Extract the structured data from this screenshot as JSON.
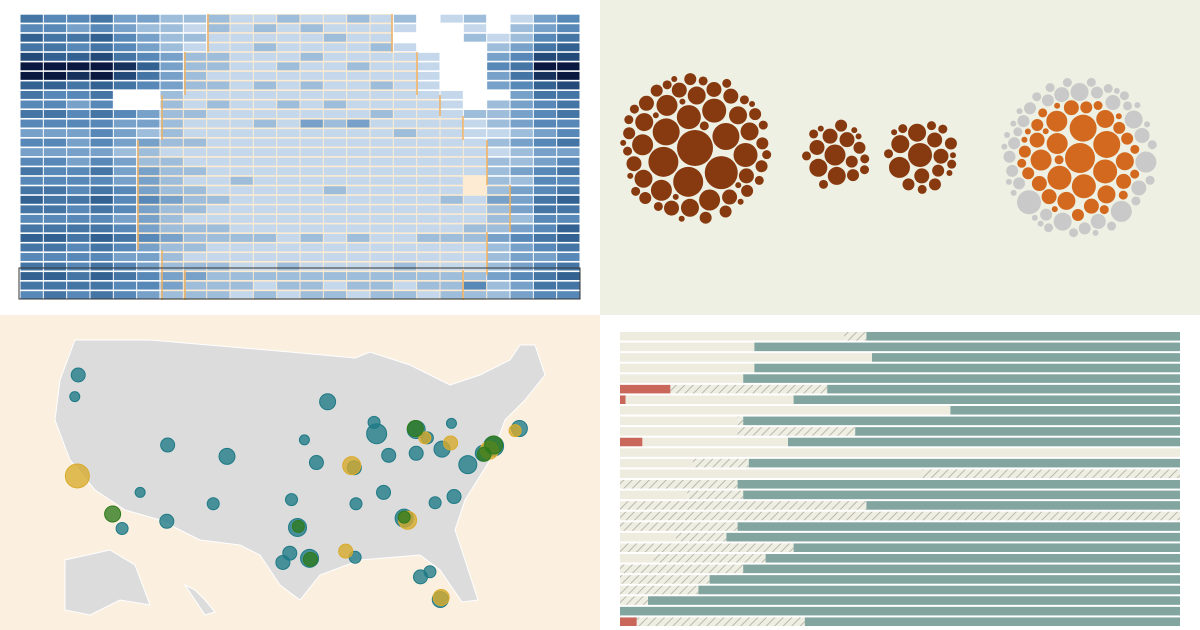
{
  "chart_data": [
    {
      "type": "heatmap",
      "colors": [
        "#c5d8eb",
        "#5d8fbd",
        "#2c5a8c",
        "#0a1840"
      ],
      "values": [
        [
          5,
          4,
          4,
          5,
          3,
          3,
          2,
          2,
          2,
          1,
          1,
          2,
          1,
          1,
          2,
          1,
          2,
          null,
          1,
          2,
          null,
          1,
          3,
          4
        ],
        [
          4,
          4,
          3,
          4,
          3,
          2,
          2,
          1,
          2,
          1,
          2,
          1,
          2,
          1,
          1,
          1,
          1,
          null,
          null,
          1,
          null,
          2,
          3,
          4
        ],
        [
          6,
          5,
          5,
          6,
          4,
          3,
          2,
          2,
          1,
          1,
          1,
          1,
          1,
          2,
          1,
          1,
          null,
          null,
          null,
          2,
          1,
          2,
          4,
          5
        ],
        [
          5,
          5,
          4,
          5,
          4,
          3,
          2,
          1,
          1,
          1,
          2,
          1,
          1,
          1,
          1,
          2,
          1,
          null,
          null,
          null,
          2,
          3,
          5,
          6
        ],
        [
          7,
          6,
          6,
          7,
          5,
          4,
          3,
          2,
          2,
          1,
          1,
          1,
          2,
          1,
          1,
          1,
          1,
          1,
          null,
          null,
          3,
          4,
          7,
          7
        ],
        [
          9,
          9,
          9,
          9,
          8,
          6,
          3,
          2,
          2,
          1,
          1,
          2,
          1,
          1,
          2,
          1,
          1,
          1,
          null,
          null,
          4,
          5,
          9,
          9
        ],
        [
          9,
          9,
          8,
          9,
          7,
          5,
          3,
          2,
          1,
          1,
          1,
          1,
          1,
          1,
          1,
          1,
          1,
          1,
          null,
          null,
          3,
          5,
          8,
          9
        ],
        [
          6,
          6,
          5,
          6,
          5,
          4,
          3,
          2,
          2,
          1,
          2,
          1,
          2,
          1,
          1,
          2,
          1,
          1,
          null,
          null,
          3,
          4,
          6,
          7
        ],
        [
          5,
          4,
          4,
          5,
          null,
          null,
          2,
          1,
          1,
          1,
          1,
          1,
          1,
          1,
          1,
          1,
          1,
          1,
          1,
          null,
          null,
          3,
          5,
          5
        ],
        [
          4,
          4,
          3,
          4,
          null,
          null,
          2,
          1,
          2,
          1,
          1,
          2,
          1,
          2,
          1,
          1,
          1,
          1,
          1,
          null,
          2,
          3,
          4,
          5
        ],
        [
          5,
          5,
          4,
          5,
          4,
          3,
          2,
          2,
          1,
          1,
          1,
          1,
          1,
          1,
          1,
          2,
          1,
          1,
          1,
          2,
          2,
          3,
          4,
          5
        ],
        [
          4,
          4,
          4,
          4,
          3,
          3,
          2,
          1,
          1,
          1,
          2,
          1,
          3,
          2,
          3,
          1,
          1,
          1,
          1,
          1,
          2,
          3,
          4,
          4
        ],
        [
          3,
          3,
          3,
          4,
          3,
          2,
          2,
          1,
          1,
          1,
          1,
          1,
          1,
          1,
          1,
          1,
          2,
          1,
          1,
          1,
          1,
          2,
          3,
          4
        ],
        [
          4,
          4,
          3,
          4,
          3,
          3,
          2,
          2,
          1,
          1,
          1,
          1,
          1,
          1,
          1,
          1,
          1,
          1,
          1,
          1,
          2,
          3,
          4,
          5
        ],
        [
          3,
          3,
          3,
          3,
          2,
          2,
          1,
          1,
          1,
          1,
          1,
          1,
          1,
          1,
          1,
          1,
          1,
          1,
          1,
          1,
          1,
          2,
          3,
          3
        ],
        [
          4,
          4,
          3,
          4,
          3,
          2,
          2,
          1,
          1,
          1,
          1,
          1,
          1,
          1,
          1,
          1,
          1,
          1,
          1,
          1,
          2,
          2,
          3,
          4
        ],
        [
          5,
          4,
          4,
          5,
          3,
          3,
          2,
          2,
          1,
          1,
          1,
          1,
          1,
          1,
          1,
          1,
          1,
          1,
          1,
          1,
          2,
          3,
          4,
          5
        ],
        [
          4,
          4,
          4,
          4,
          3,
          3,
          2,
          1,
          1,
          2,
          1,
          1,
          1,
          1,
          1,
          1,
          1,
          1,
          1,
          null,
          2,
          2,
          4,
          4
        ],
        [
          5,
          5,
          4,
          5,
          4,
          3,
          2,
          2,
          1,
          1,
          1,
          1,
          1,
          2,
          1,
          1,
          1,
          1,
          1,
          null,
          2,
          3,
          4,
          5
        ],
        [
          6,
          5,
          5,
          6,
          4,
          4,
          3,
          2,
          2,
          1,
          1,
          1,
          1,
          1,
          1,
          1,
          1,
          1,
          2,
          1,
          3,
          3,
          5,
          6
        ],
        [
          5,
          5,
          4,
          5,
          4,
          3,
          2,
          2,
          1,
          1,
          1,
          1,
          1,
          1,
          1,
          1,
          1,
          1,
          1,
          1,
          2,
          3,
          5,
          5
        ],
        [
          4,
          4,
          4,
          4,
          3,
          3,
          2,
          1,
          1,
          1,
          1,
          1,
          1,
          1,
          1,
          1,
          1,
          1,
          1,
          1,
          2,
          2,
          4,
          4
        ],
        [
          5,
          5,
          5,
          5,
          4,
          3,
          2,
          2,
          2,
          1,
          1,
          1,
          1,
          1,
          1,
          1,
          1,
          1,
          1,
          2,
          2,
          3,
          4,
          6
        ],
        [
          6,
          6,
          5,
          6,
          5,
          4,
          3,
          2,
          2,
          2,
          2,
          1,
          2,
          1,
          2,
          1,
          1,
          2,
          2,
          2,
          3,
          4,
          5,
          6
        ],
        [
          5,
          5,
          4,
          5,
          4,
          3,
          2,
          2,
          1,
          1,
          1,
          1,
          1,
          1,
          1,
          1,
          1,
          1,
          1,
          1,
          2,
          3,
          4,
          5
        ],
        [
          4,
          4,
          4,
          4,
          3,
          3,
          2,
          1,
          1,
          1,
          1,
          1,
          1,
          1,
          1,
          1,
          1,
          1,
          1,
          1,
          2,
          3,
          3,
          4
        ],
        [
          5,
          5,
          4,
          5,
          4,
          3,
          2,
          2,
          2,
          1,
          1,
          2,
          1,
          1,
          1,
          1,
          2,
          1,
          1,
          1,
          2,
          3,
          4,
          5
        ],
        [
          6,
          6,
          5,
          6,
          5,
          4,
          3,
          3,
          2,
          2,
          2,
          2,
          2,
          2,
          2,
          2,
          2,
          2,
          2,
          2,
          3,
          4,
          5,
          6
        ],
        [
          5,
          5,
          5,
          5,
          4,
          4,
          3,
          2,
          2,
          2,
          1,
          2,
          2,
          1,
          2,
          2,
          1,
          2,
          2,
          4,
          2,
          3,
          5,
          5
        ],
        [
          4,
          5,
          4,
          5,
          4,
          3,
          2,
          2,
          2,
          1,
          2,
          1,
          2,
          2,
          1,
          2,
          2,
          1,
          2,
          2,
          2,
          3,
          4,
          4
        ]
      ]
    },
    {
      "type": "packed-bubbles",
      "series": [
        {
          "color": "#87390f",
          "values": [
            12,
            11,
            10,
            10,
            9,
            9,
            8,
            8,
            8,
            7,
            7,
            7,
            7,
            6,
            6,
            6,
            6,
            6,
            6,
            5,
            5,
            5,
            5,
            5,
            5,
            5,
            5,
            4,
            4,
            4,
            4,
            4,
            4,
            4,
            4,
            4,
            4,
            3,
            3,
            3,
            3,
            3,
            3,
            3,
            3,
            3,
            3,
            3,
            3,
            3,
            2,
            2,
            2,
            2,
            2,
            2,
            2,
            2,
            2,
            2
          ]
        },
        {
          "color": "#87390f",
          "values": [
            7,
            6,
            6,
            5,
            5,
            5,
            4,
            4,
            4,
            4,
            3,
            3,
            3,
            3,
            3,
            2,
            2,
            2
          ]
        },
        {
          "color": "#87390f",
          "values": [
            8,
            7,
            6,
            6,
            5,
            5,
            5,
            4,
            4,
            4,
            4,
            3,
            3,
            3,
            3,
            3,
            3,
            2,
            2,
            2
          ]
        },
        {
          "color": "#d2691e",
          "values": [
            10,
            9,
            9,
            8,
            8,
            8,
            7,
            7,
            7,
            6,
            6,
            6,
            6,
            5,
            5,
            5,
            5,
            5,
            5,
            4,
            4,
            4,
            4,
            4,
            4,
            4,
            3,
            3,
            3,
            3,
            3,
            3,
            3,
            3,
            2,
            2,
            2,
            2,
            2,
            2
          ]
        },
        {
          "color": "#c9c9c9",
          "values": [
            8,
            7,
            7,
            6,
            6,
            6,
            5,
            5,
            5,
            5,
            5,
            4,
            4,
            4,
            4,
            4,
            4,
            4,
            4,
            4,
            4,
            3,
            3,
            3,
            3,
            3,
            3,
            3,
            3,
            3,
            3,
            3,
            3,
            3,
            3,
            2,
            2,
            2,
            2,
            2,
            2,
            2,
            2,
            2,
            2,
            2,
            2
          ]
        }
      ]
    },
    {
      "type": "bubble-map",
      "series": [
        {
          "color": "#1e7a86",
          "x": [
            -122.3,
            -122.7,
            -117.2,
            -112,
            -105,
            -111.9,
            -115.1,
            -106.6,
            -96.8,
            -95.4,
            -97.7,
            -98.5,
            -94.6,
            -93.3,
            -87.6,
            -83,
            -83,
            -84.4,
            -86.8,
            -80.8,
            -78.6,
            -77,
            -75.2,
            -74,
            -71,
            -80.2,
            -82.5,
            -81.4,
            -90.1,
            -90.2,
            -80,
            -81.7,
            -86.2,
            -90,
            -97.5,
            -96,
            -87.9,
            -78.9
          ],
          "values": [
            47.6,
            45.5,
            32.7,
            33.4,
            39.7,
            40.8,
            36.2,
            35.1,
            32.8,
            29.8,
            30.3,
            29.4,
            39.1,
            45,
            41.9,
            42.3,
            40,
            33.7,
            36.2,
            35.2,
            35.8,
            38.9,
            40,
            40.7,
            42.4,
            25.8,
            28,
            28.5,
            29.9,
            38.6,
            40.4,
            41.5,
            39.8,
            35.1,
            35.5,
            41.3,
            43,
            42.9
          ],
          "sizes": [
            7,
            5,
            6,
            7,
            8,
            7,
            5,
            6,
            9,
            9,
            7,
            7,
            7,
            8,
            10,
            9,
            7,
            9,
            7,
            6,
            7,
            9,
            8,
            10,
            8,
            8,
            7,
            6,
            6,
            7,
            8,
            6,
            7,
            6,
            6,
            5,
            6,
            5
          ]
        },
        {
          "color": "#d9ab2a",
          "x": [
            -122.4,
            -90.5,
            -79,
            -84,
            -80.1,
            -74.5,
            -82,
            -91.2,
            -71.5
          ],
          "values": [
            37.8,
            38.8,
            41,
            33.5,
            26,
            40.3,
            41.5,
            30.5,
            42.2
          ],
          "sizes": [
            12,
            9,
            7,
            9,
            8,
            9,
            6,
            7,
            6
          ]
        },
        {
          "color": "#2e7a1c",
          "x": [
            -118.3,
            -95.3,
            -83.1,
            -74,
            -75.1,
            -84.4,
            -96.7
          ],
          "values": [
            34.1,
            29.7,
            42.4,
            40.8,
            39.9,
            33.8,
            32.9
          ],
          "sizes": [
            8,
            7,
            8,
            9,
            7,
            6,
            6
          ]
        }
      ]
    },
    {
      "type": "stacked-bar",
      "orientation": "horizontal",
      "xlim": [
        0,
        100
      ],
      "series": [
        {
          "color": "#c9675b",
          "values": [
            0,
            0,
            0,
            0,
            0,
            9,
            1,
            0,
            0,
            0,
            4,
            0,
            0,
            0,
            0,
            0,
            0,
            0,
            0,
            0,
            0,
            0,
            0,
            0,
            0,
            0,
            0,
            3
          ]
        },
        {
          "color": "#eeecdf",
          "values": [
            40,
            24,
            45,
            24,
            22,
            0,
            30,
            59,
            21,
            21,
            26,
            100,
            13,
            54,
            0,
            12,
            0,
            0,
            0,
            10,
            0,
            6,
            0,
            0,
            0,
            0,
            0,
            0
          ]
        },
        {
          "color": "#dcdcd0",
          "pattern": "hatch",
          "values": [
            4,
            0,
            0,
            0,
            0,
            28,
            0,
            0,
            1,
            21,
            0,
            0,
            10,
            46,
            21,
            10,
            44,
            100,
            21,
            9,
            31,
            20,
            22,
            16,
            14,
            5,
            0,
            30
          ]
        },
        {
          "color": "#82a69f",
          "values": [
            56,
            76,
            55,
            76,
            78,
            63,
            69,
            41,
            78,
            58,
            70,
            0,
            77,
            0,
            79,
            78,
            56,
            0,
            79,
            81,
            69,
            74,
            78,
            84,
            86,
            95,
            100,
            67
          ]
        }
      ]
    }
  ]
}
